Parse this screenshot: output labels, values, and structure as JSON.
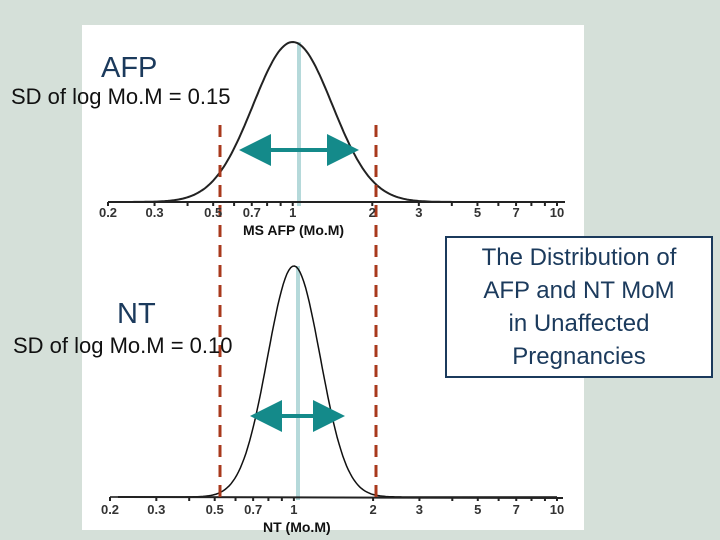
{
  "slide": {
    "background_color": "#d5e0d9",
    "box_text_lines": [
      "The Distribution of",
      "AFP and NT MoM",
      "in Unaffected",
      "Pregnancies"
    ]
  },
  "afp": {
    "title": "AFP",
    "sd_label": "SD of log Mo.M = 0.15",
    "axis_title": "MS AFP (Mo.M)"
  },
  "nt": {
    "title": "NT",
    "sd_label": "SD of log Mo.M = 0.10",
    "axis_title": "NT (Mo.M)"
  },
  "axis": {
    "tick_labels": [
      "0.2",
      "0.3",
      "0.5",
      "0.7",
      "1",
      "2",
      "3",
      "5",
      "7",
      "10"
    ]
  },
  "colors": {
    "title": "#1b3a5c",
    "curve": "#222222",
    "median_line": "#b5d9da",
    "arrow": "#148a8a",
    "cutoff": "#a8391c"
  },
  "chart_data": [
    {
      "type": "line",
      "title": "AFP",
      "subtitle": "SD of log Mo.M = 0.15",
      "xlabel": "MS AFP (Mo.M)",
      "ylabel": "",
      "x_scale": "log",
      "xlim": [
        0.2,
        10
      ],
      "x_ticks": [
        0.2,
        0.3,
        0.5,
        0.7,
        1,
        2,
        3,
        5,
        7,
        10
      ],
      "distribution": "log-normal",
      "median": 1,
      "sd_log10": 0.15,
      "cutoff_lines": [
        0.5,
        2
      ],
      "annotations": [
        "double-headed arrow spanning ±1 SD around median",
        "vertical line at median 1.0"
      ],
      "grid": false
    },
    {
      "type": "line",
      "title": "NT",
      "subtitle": "SD of log Mo.M = 0.10",
      "xlabel": "NT (Mo.M)",
      "ylabel": "",
      "x_scale": "log",
      "xlim": [
        0.2,
        10
      ],
      "x_ticks": [
        0.2,
        0.3,
        0.5,
        0.7,
        1,
        2,
        3,
        5,
        7,
        10
      ],
      "distribution": "log-normal",
      "median": 1,
      "sd_log10": 0.1,
      "cutoff_lines": [
        0.5,
        2
      ],
      "annotations": [
        "double-headed arrow spanning ±1 SD around median",
        "vertical line at median 1.0"
      ],
      "grid": false
    }
  ]
}
